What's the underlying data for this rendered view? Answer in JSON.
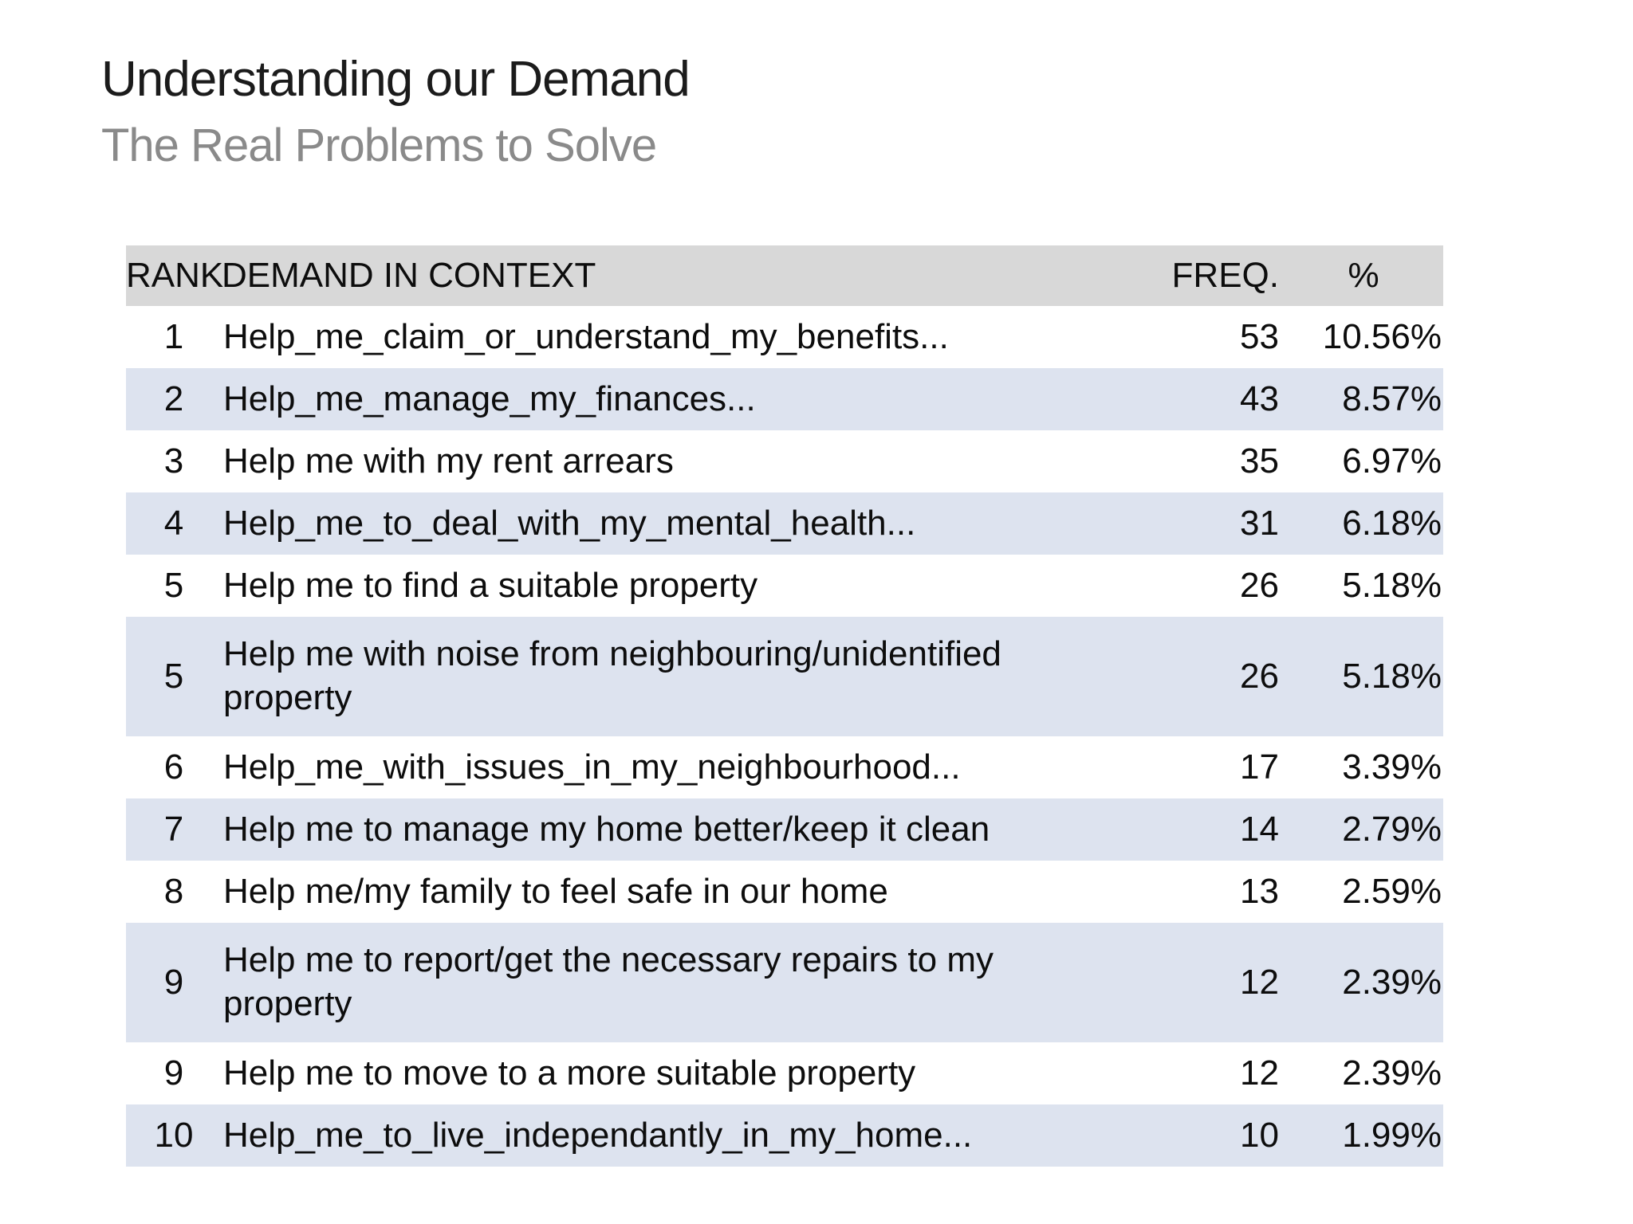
{
  "slide": {
    "title": "Understanding our Demand",
    "subtitle": "The Real Problems to Solve"
  },
  "table": {
    "headers": {
      "rank": "RANK",
      "demand": "DEMAND IN CONTEXT",
      "freq": "FREQ.",
      "pct": "%"
    },
    "rows": [
      {
        "rank": "1",
        "demand": "Help_me_claim_or_understand_my_benefits...",
        "freq": "53",
        "pct": "10.56%"
      },
      {
        "rank": "2",
        "demand": "Help_me_manage_my_finances...",
        "freq": "43",
        "pct": "8.57%"
      },
      {
        "rank": "3",
        "demand": "Help me with my rent arrears",
        "freq": "35",
        "pct": "6.97%"
      },
      {
        "rank": "4",
        "demand": "Help_me_to_deal_with_my_mental_health...",
        "freq": "31",
        "pct": "6.18%"
      },
      {
        "rank": "5",
        "demand": "Help me to find a suitable property",
        "freq": "26",
        "pct": "5.18%"
      },
      {
        "rank": "5",
        "demand": "Help me with noise from neighbouring/unidentified\nproperty",
        "freq": "26",
        "pct": "5.18%"
      },
      {
        "rank": "6",
        "demand": "Help_me_with_issues_in_my_neighbourhood...",
        "freq": "17",
        "pct": "3.39%"
      },
      {
        "rank": "7",
        "demand": "Help me to manage my home better/keep it clean",
        "freq": "14",
        "pct": "2.79%"
      },
      {
        "rank": "8",
        "demand": "Help me/my family to feel safe in our home",
        "freq": "13",
        "pct": "2.59%"
      },
      {
        "rank": "9",
        "demand": "Help me to report/get the necessary repairs to my\nproperty",
        "freq": "12",
        "pct": "2.39%"
      },
      {
        "rank": "9",
        "demand": "Help me to move to a more suitable property",
        "freq": "12",
        "pct": "2.39%"
      },
      {
        "rank": "10",
        "demand": "Help_me_to_live_independantly_in_my_home...",
        "freq": "10",
        "pct": "1.99%"
      }
    ],
    "colors": {
      "header_bg": "#d8d8d8",
      "band_bg": "#dde3ef",
      "row_bg": "#ffffff",
      "title_color": "#1b1b1b",
      "subtitle_color": "#8a8a8a"
    }
  }
}
